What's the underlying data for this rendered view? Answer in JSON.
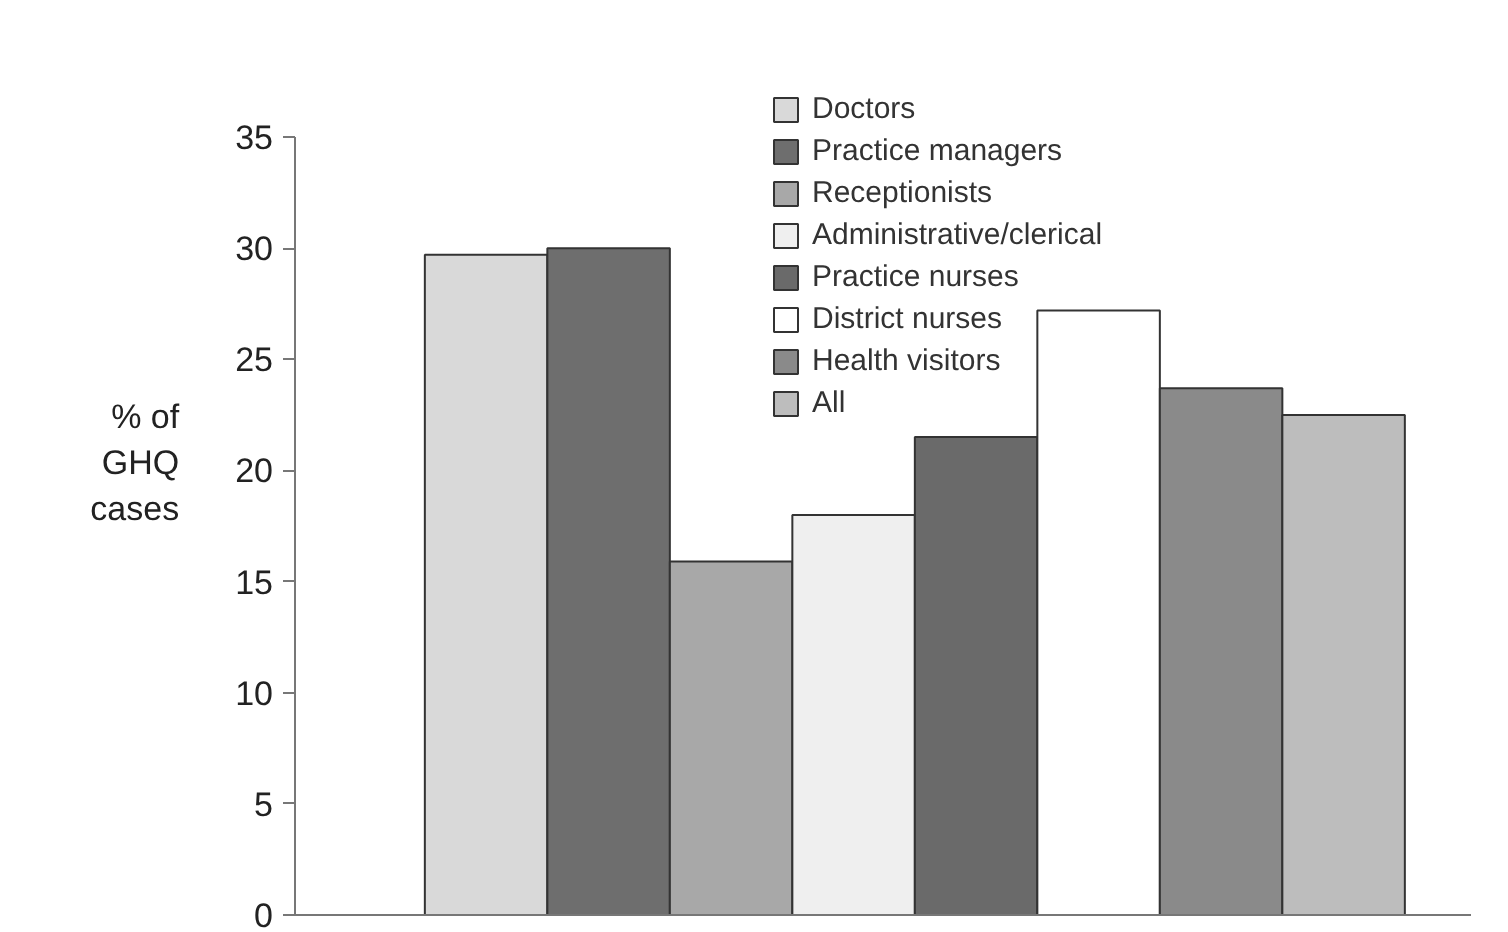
{
  "chart_data": {
    "type": "bar",
    "ylabel": "% of\nGHQ\ncases",
    "categories": [
      null
    ],
    "ylim": [
      0,
      35
    ],
    "yticks": [
      0,
      5,
      10,
      15,
      20,
      25,
      30,
      35
    ],
    "grid": false,
    "legend": "top",
    "series": [
      {
        "name": "Doctors",
        "color": "#d9d9d9",
        "values": [
          29.7
        ]
      },
      {
        "name": "Practice managers",
        "color": "#6e6e6e",
        "values": [
          30.0
        ]
      },
      {
        "name": "Receptionists",
        "color": "#a8a8a8",
        "values": [
          15.9
        ]
      },
      {
        "name": "Administrative/clerical",
        "color": "#efefef",
        "values": [
          18.0
        ]
      },
      {
        "name": "Practice nurses",
        "color": "#6a6a6a",
        "values": [
          21.5
        ]
      },
      {
        "name": "District nurses",
        "color": "#ffffff",
        "values": [
          27.2
        ]
      },
      {
        "name": "Health visitors",
        "color": "#8a8a8a",
        "values": [
          23.7
        ]
      },
      {
        "name": "All",
        "color": "#bdbdbd",
        "values": [
          22.5
        ]
      }
    ]
  }
}
